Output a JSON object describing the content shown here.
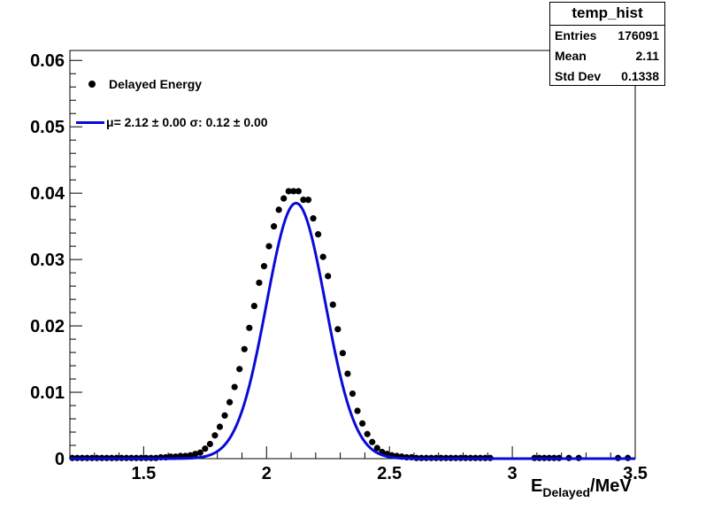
{
  "stats": {
    "title": "temp_hist",
    "rows": [
      {
        "label": "Entries",
        "value": "176091"
      },
      {
        "label": "Mean",
        "value": "2.11"
      },
      {
        "label": "Std Dev",
        "value": "0.1338"
      }
    ]
  },
  "legend": {
    "data_label": "Delayed Energy",
    "fit_label": "μ= 2.12 ± 0.00 σ: 0.12 ± 0.00"
  },
  "axis": {
    "xlabel_main": "E",
    "xlabel_sub": "Delayed",
    "xlabel_unit": "/MeV"
  },
  "colors": {
    "points": "#000000",
    "fit": "#0a0ad8"
  },
  "chart_data": {
    "type": "scatter",
    "xlim": [
      1.2,
      3.5
    ],
    "ylim": [
      0,
      0.0615
    ],
    "xticks": [
      1.5,
      2,
      2.5,
      3,
      3.5
    ],
    "xtick_labels": [
      "1.5",
      "2",
      "2.5",
      "3",
      "3.5"
    ],
    "yticks": [
      0,
      0.01,
      0.02,
      0.03,
      0.04,
      0.05,
      0.06
    ],
    "ytick_labels": [
      "0",
      "0.01",
      "0.02",
      "0.03",
      "0.04",
      "0.05",
      "0.06"
    ],
    "grid": false,
    "legend_position": "top-left",
    "series": [
      {
        "name": "Delayed Energy",
        "type": "scatter",
        "x": [
          1.21,
          1.23,
          1.25,
          1.27,
          1.29,
          1.31,
          1.33,
          1.35,
          1.37,
          1.39,
          1.41,
          1.43,
          1.45,
          1.47,
          1.49,
          1.51,
          1.53,
          1.55,
          1.57,
          1.59,
          1.61,
          1.63,
          1.65,
          1.67,
          1.69,
          1.71,
          1.73,
          1.75,
          1.77,
          1.79,
          1.81,
          1.83,
          1.85,
          1.87,
          1.89,
          1.91,
          1.93,
          1.95,
          1.97,
          1.99,
          2.01,
          2.03,
          2.05,
          2.07,
          2.09,
          2.11,
          2.13,
          2.15,
          2.17,
          2.19,
          2.21,
          2.23,
          2.25,
          2.27,
          2.29,
          2.31,
          2.33,
          2.35,
          2.37,
          2.39,
          2.41,
          2.43,
          2.45,
          2.47,
          2.49,
          2.51,
          2.53,
          2.55,
          2.57,
          2.59,
          2.61,
          2.63,
          2.65,
          2.67,
          2.69,
          2.71,
          2.73,
          2.75,
          2.77,
          2.79,
          2.81,
          2.83,
          2.85,
          2.87,
          2.89,
          2.91,
          3.09,
          3.11,
          3.13,
          3.15,
          3.17,
          3.19,
          3.23,
          3.27,
          3.43,
          3.47
        ],
        "y": [
          0.0001,
          0.0001,
          0.0001,
          0.0001,
          0.0001,
          0.0001,
          0.0001,
          0.0001,
          0.0001,
          0.0001,
          0.0001,
          0.0001,
          0.0001,
          0.0001,
          0.0001,
          0.0001,
          0.0001,
          0.0001,
          0.0002,
          0.0002,
          0.0003,
          0.0003,
          0.0004,
          0.0004,
          0.0005,
          0.0007,
          0.0009,
          0.0015,
          0.0022,
          0.0035,
          0.0048,
          0.0065,
          0.0085,
          0.0108,
          0.0135,
          0.0165,
          0.0197,
          0.023,
          0.0265,
          0.029,
          0.032,
          0.035,
          0.0375,
          0.0392,
          0.0403,
          0.0403,
          0.0403,
          0.039,
          0.039,
          0.0362,
          0.0338,
          0.0304,
          0.0275,
          0.0232,
          0.0195,
          0.0159,
          0.0128,
          0.0098,
          0.0072,
          0.0053,
          0.0037,
          0.0025,
          0.0016,
          0.001,
          0.0007,
          0.0005,
          0.0004,
          0.0003,
          0.0002,
          0.0002,
          0.0001,
          0.0001,
          0.0001,
          0.0001,
          0.0001,
          0.0001,
          0.0001,
          0.0001,
          0.0001,
          0.0001,
          0.0001,
          0.0001,
          0.0001,
          0.0001,
          0.0001,
          0.0001,
          0.0001,
          0.0001,
          0.0001,
          0.0001,
          0.0001,
          0.0001,
          0.0001,
          0.0001,
          0.0001,
          0.0001
        ]
      },
      {
        "name": "μ= 2.12 ± 0.00 σ: 0.12 ± 0.00",
        "type": "line",
        "function": "gaussian",
        "mean": 2.12,
        "sigma": 0.12,
        "amplitude": 0.0385,
        "x_range": [
          1.2,
          3.5
        ]
      }
    ]
  }
}
